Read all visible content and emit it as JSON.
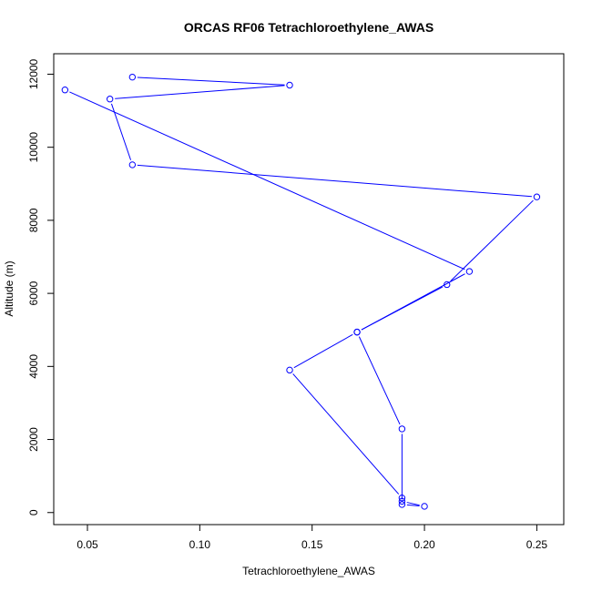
{
  "chart_data": {
    "type": "line",
    "title": "ORCAS RF06 Tetrachloroethylene_AWAS",
    "xlabel": "Tetrachloroethylene_AWAS",
    "ylabel": "Altitude (m)",
    "xlim": [
      0.035,
      0.262
    ],
    "ylim": [
      -330,
      12560
    ],
    "x_ticks": [
      0.05,
      0.1,
      0.15,
      0.2,
      0.25
    ],
    "x_tick_labels": [
      "0.05",
      "0.10",
      "0.15",
      "0.20",
      "0.25"
    ],
    "y_ticks": [
      0,
      2000,
      4000,
      6000,
      8000,
      10000,
      12000
    ],
    "y_tick_labels": [
      "0",
      "2000",
      "4000",
      "6000",
      "8000",
      "10000",
      "12000"
    ],
    "grid": false,
    "color": "#0000ff",
    "series": [
      {
        "points": [
          {
            "x": 0.07,
            "y": 11920
          },
          {
            "x": 0.14,
            "y": 11700
          },
          {
            "x": 0.06,
            "y": 11320
          },
          {
            "x": 0.07,
            "y": 9520
          },
          {
            "x": 0.25,
            "y": 8640
          },
          {
            "x": 0.21,
            "y": 6240
          },
          {
            "x": 0.17,
            "y": 4940
          },
          {
            "x": 0.14,
            "y": 3900
          },
          {
            "x": 0.19,
            "y": 400
          },
          {
            "x": 0.19,
            "y": 310
          },
          {
            "x": 0.2,
            "y": 170
          },
          {
            "x": 0.19,
            "y": 220
          },
          {
            "x": 0.19,
            "y": 2290
          },
          {
            "x": 0.17,
            "y": 4940
          },
          {
            "x": 0.22,
            "y": 6600
          },
          {
            "x": 0.04,
            "y": 11570
          }
        ]
      }
    ]
  }
}
